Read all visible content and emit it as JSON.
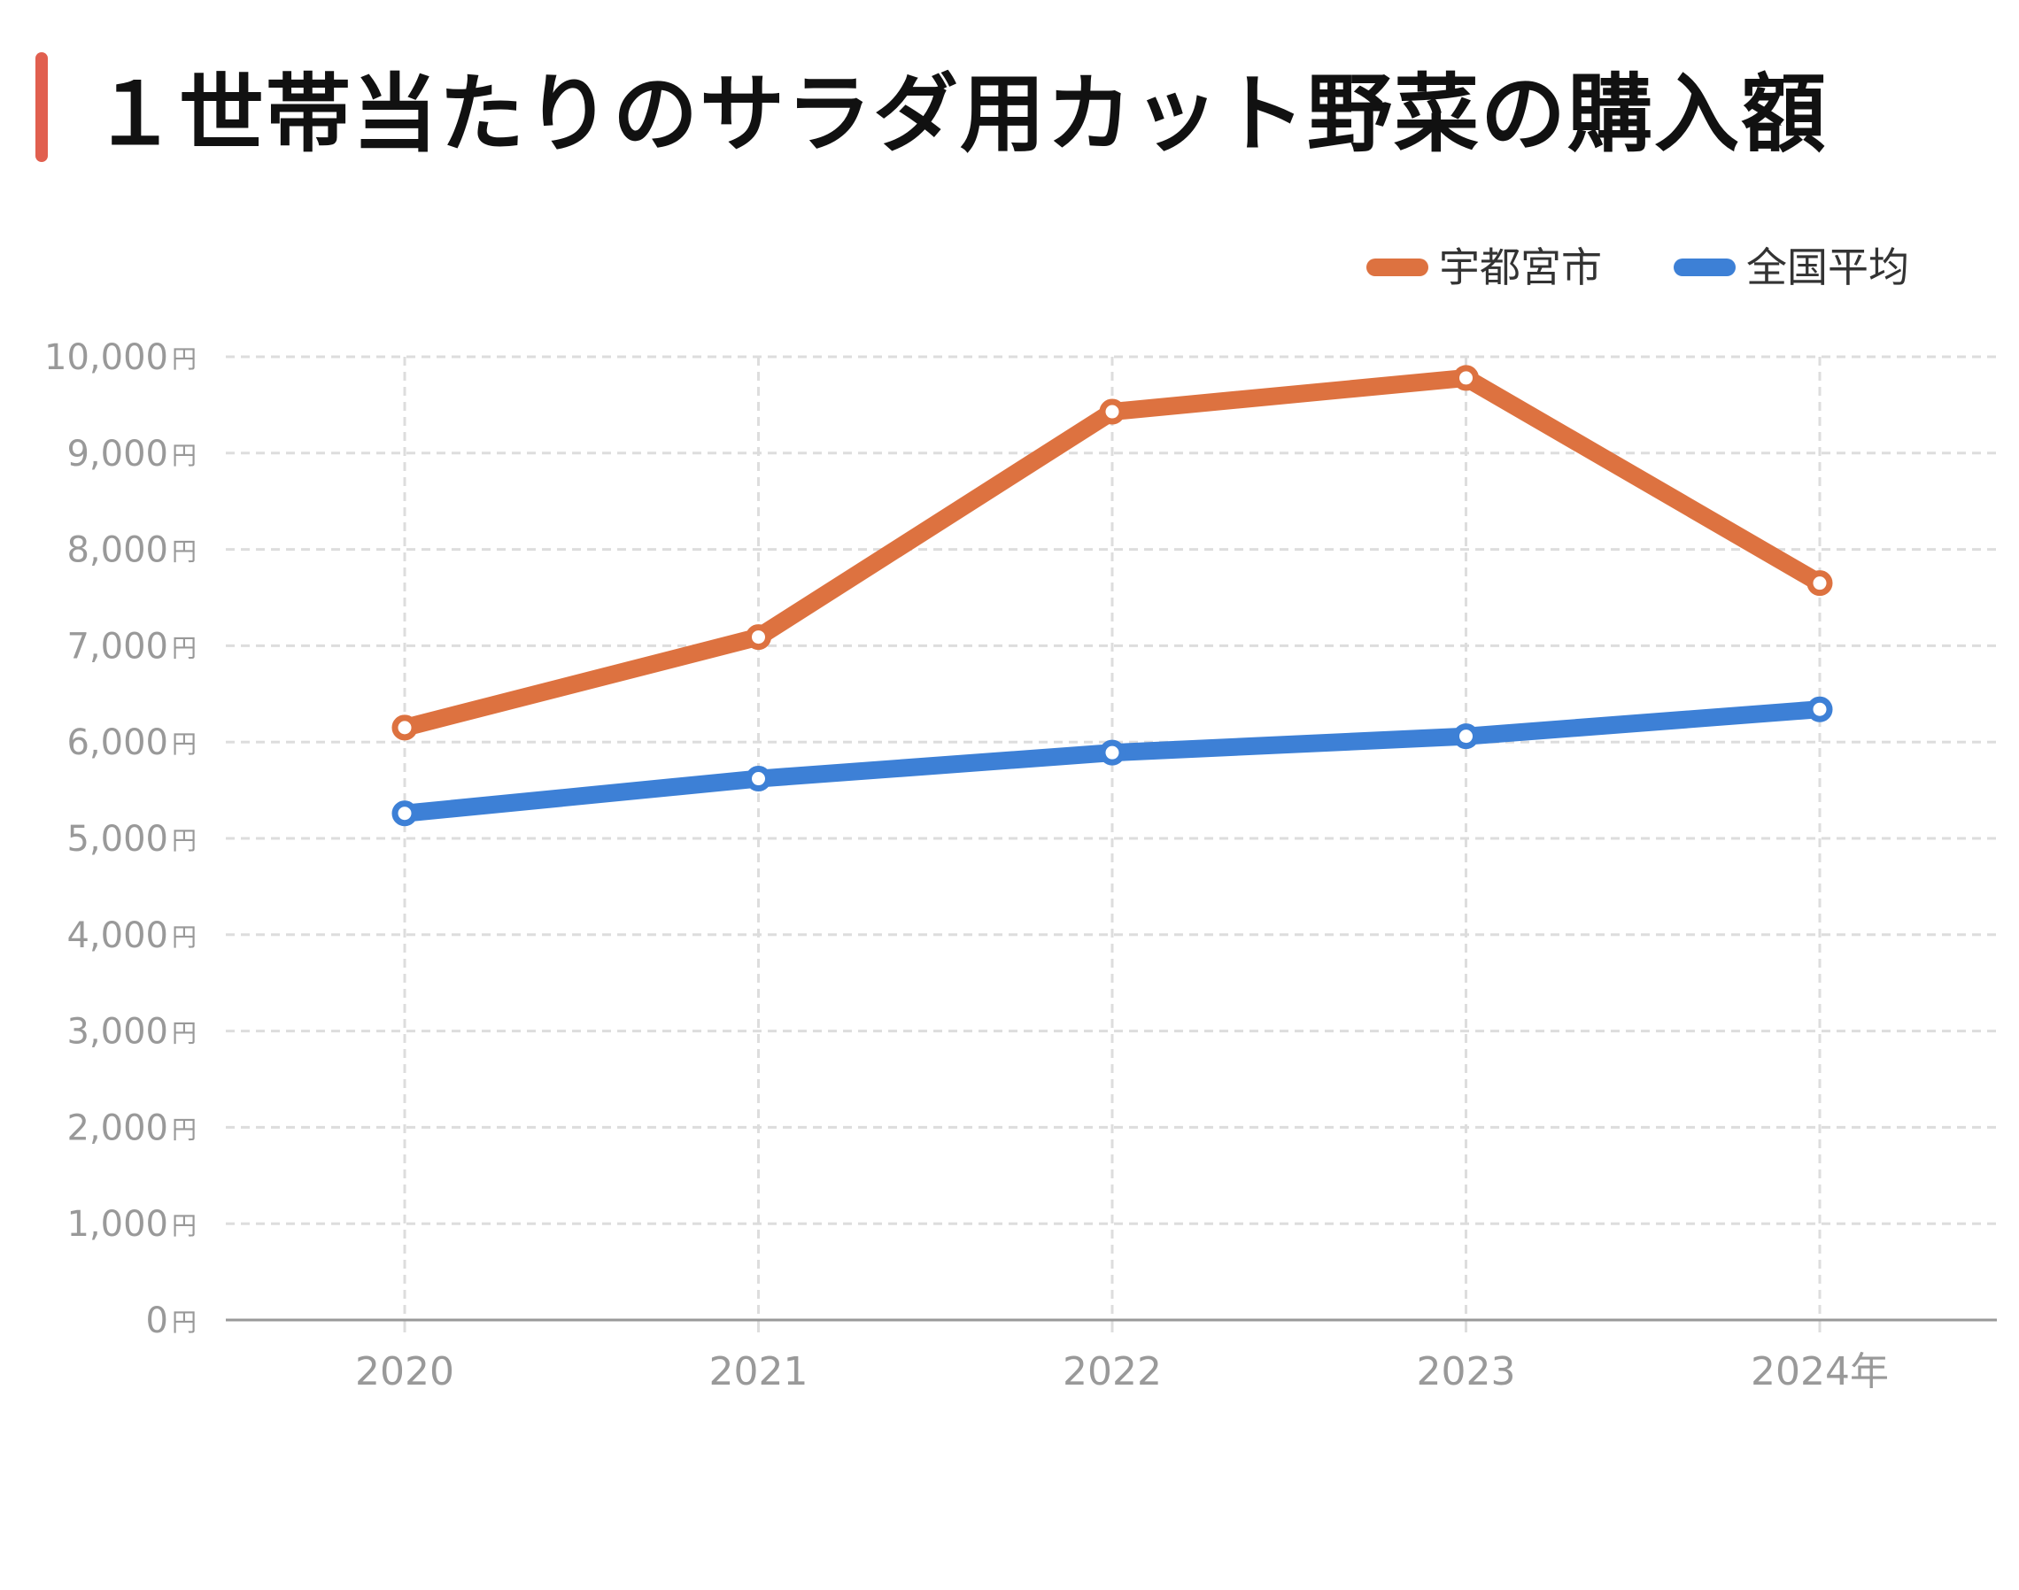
{
  "title": "１世帯当たりのサラダ用カット野菜の購入額",
  "colors": {
    "title_bar": "#e15f4f",
    "grid": "#dddddd",
    "axis": "#999999"
  },
  "chart_data": {
    "type": "line",
    "title": "１世帯当たりのサラダ用カット野菜の購入額",
    "x": [
      "2020",
      "2021",
      "2022",
      "2023",
      "2024年"
    ],
    "y_unit": "円",
    "yticks": [
      "10,000",
      "9,000",
      "8,000",
      "7,000",
      "6,000",
      "5,000",
      "4,000",
      "3,000",
      "2,000",
      "1,000",
      "0"
    ],
    "ylim": [
      0,
      10000
    ],
    "grid": true,
    "legend_position": "top-right",
    "series": [
      {
        "name": "宇都宮市",
        "color": "#dd7240",
        "values": [
          6150,
          7090,
          9430,
          9780,
          7650
        ]
      },
      {
        "name": "全国平均",
        "color": "#3d80d6",
        "values": [
          5260,
          5620,
          5890,
          6060,
          6340
        ]
      }
    ]
  }
}
